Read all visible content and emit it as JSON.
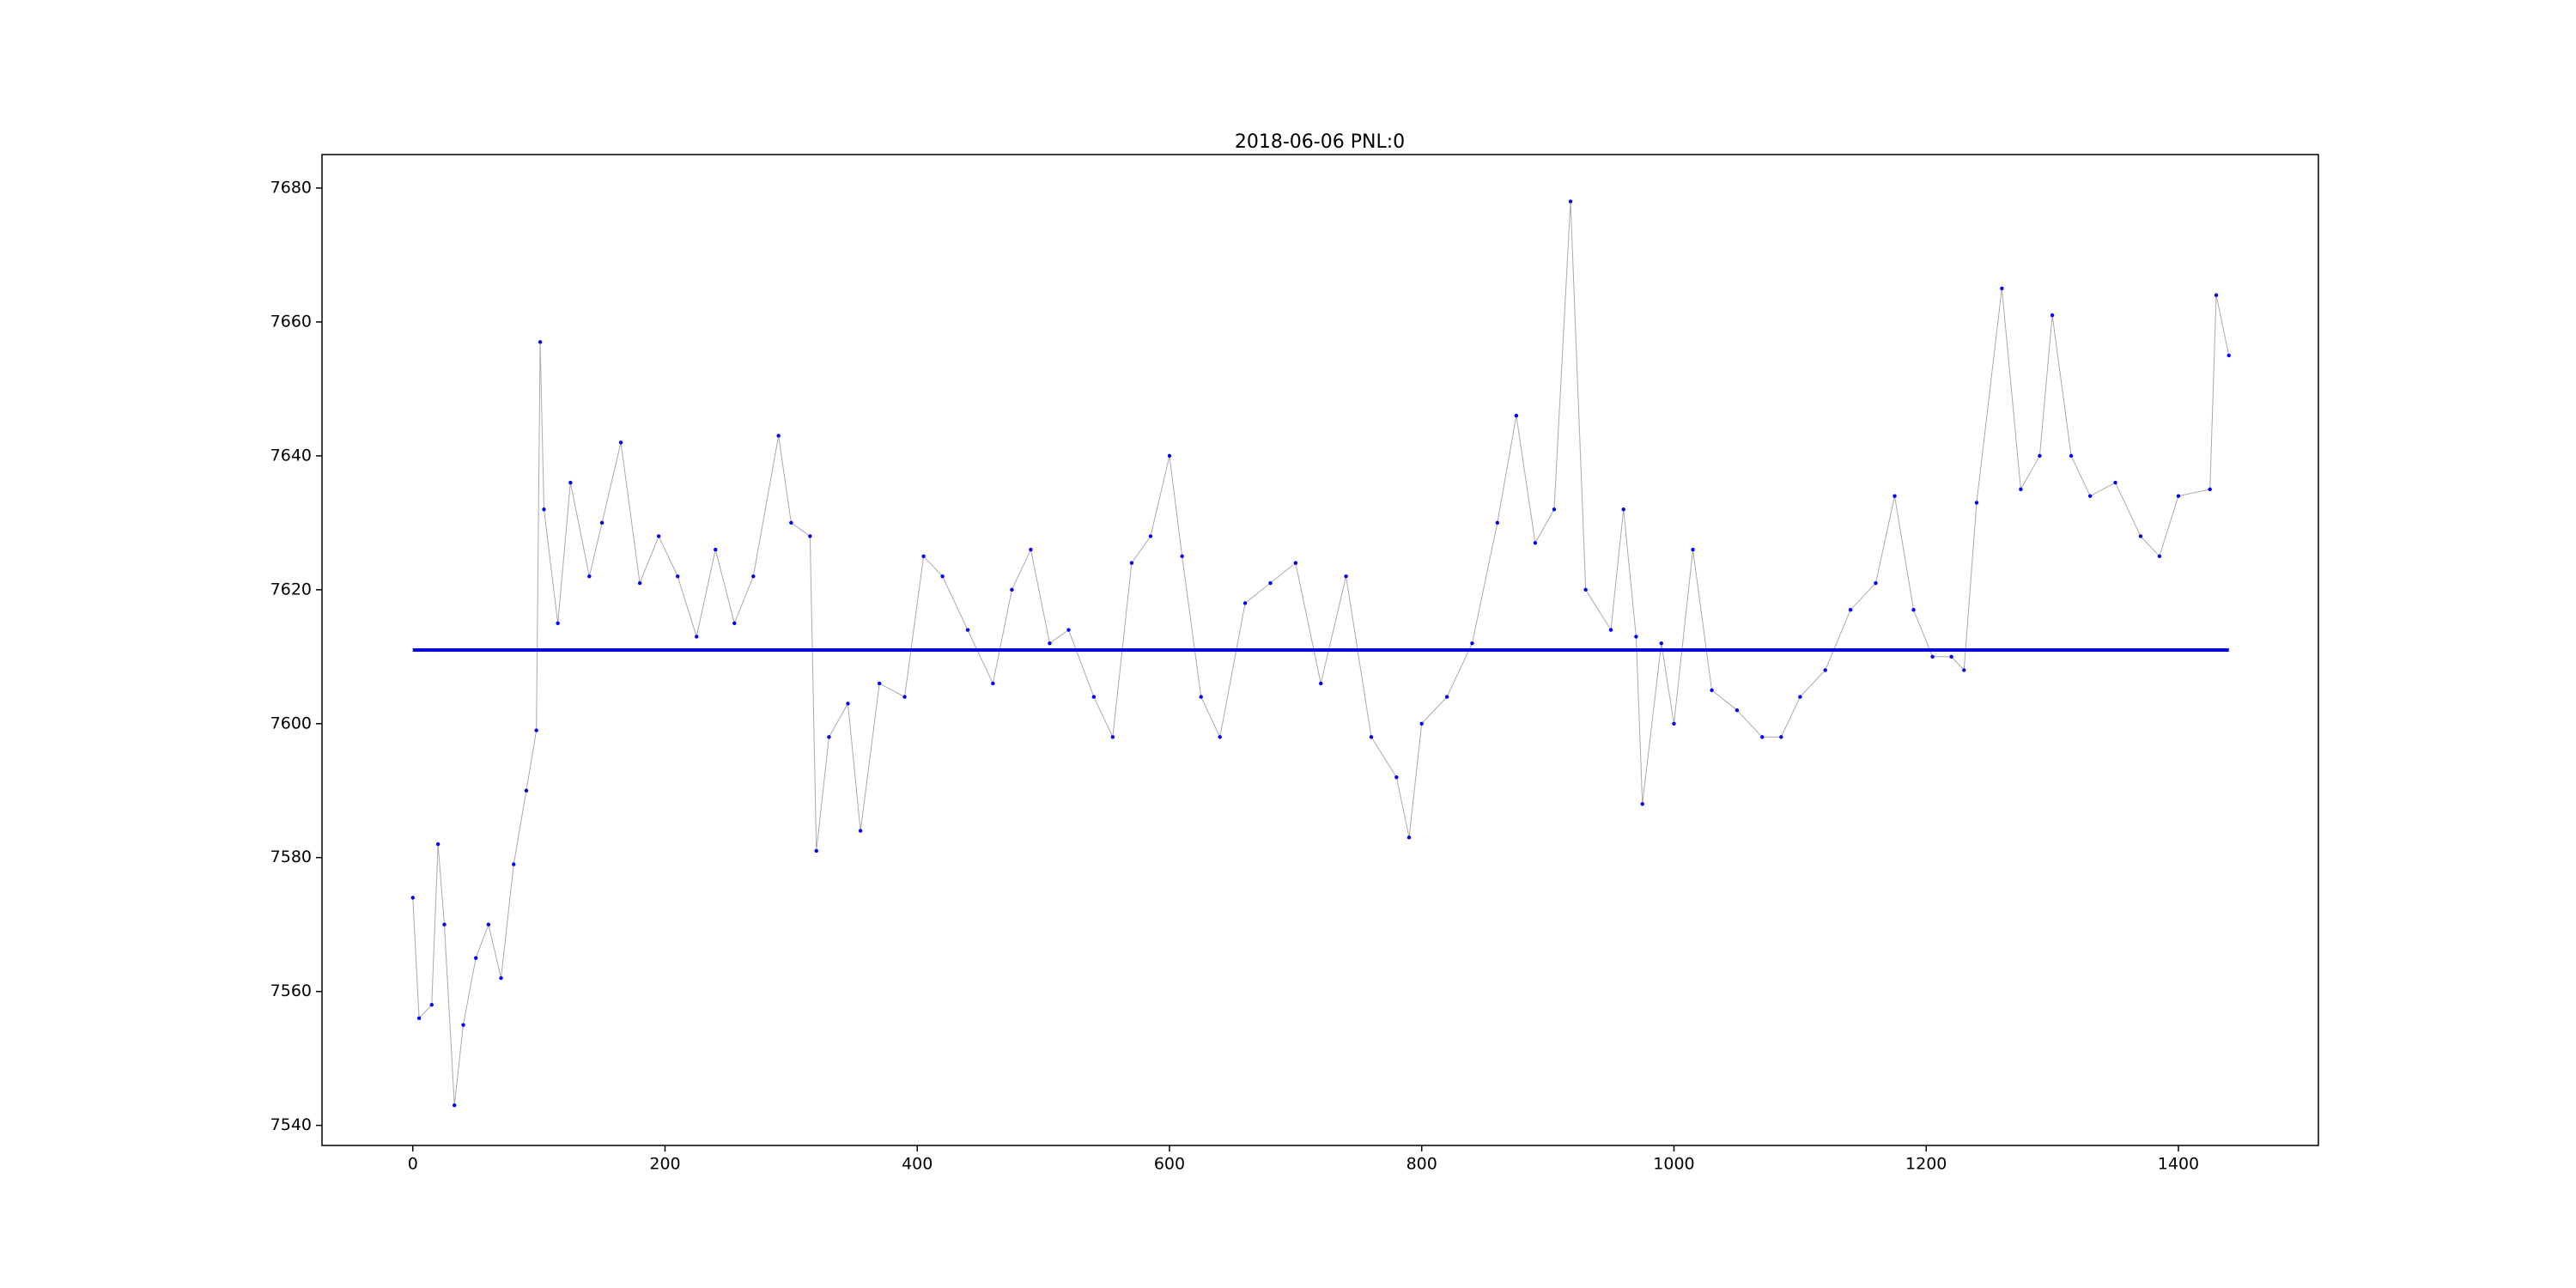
{
  "chart_data": {
    "type": "line",
    "title": "2018-06-06 PNL:0",
    "xlim": [
      -72,
      1511
    ],
    "ylim": [
      7537,
      7685
    ],
    "xticks": [
      0,
      200,
      400,
      600,
      800,
      1000,
      1200,
      1400
    ],
    "yticks": [
      7540,
      7560,
      7580,
      7600,
      7620,
      7640,
      7660,
      7680
    ],
    "series": [
      {
        "color": "#aaaaaa",
        "marker_color": "blue",
        "x": [
          0,
          5,
          15,
          20,
          25,
          33,
          40,
          50,
          60,
          70,
          80,
          90,
          98,
          101,
          104,
          115,
          125,
          140,
          150,
          165,
          180,
          195,
          210,
          225,
          240,
          255,
          270,
          290,
          300,
          315,
          320,
          330,
          345,
          355,
          370,
          390,
          405,
          420,
          440,
          460,
          475,
          490,
          505,
          520,
          540,
          555,
          570,
          585,
          600,
          610,
          625,
          640,
          660,
          680,
          700,
          720,
          740,
          760,
          780,
          790,
          800,
          820,
          840,
          860,
          875,
          890,
          905,
          918,
          930,
          950,
          960,
          970,
          975,
          990,
          1000,
          1015,
          1030,
          1050,
          1070,
          1085,
          1100,
          1120,
          1140,
          1160,
          1175,
          1190,
          1205,
          1220,
          1230,
          1240,
          1260,
          1275,
          1290,
          1300,
          1315,
          1330,
          1350,
          1370,
          1385,
          1400,
          1425,
          1430,
          1440
        ],
        "values": [
          7574,
          7556,
          7558,
          7582,
          7570,
          7543,
          7555,
          7565,
          7570,
          7562,
          7579,
          7590,
          7599,
          7657,
          7632,
          7615,
          7636,
          7622,
          7630,
          7642,
          7621,
          7628,
          7622,
          7613,
          7626,
          7615,
          7622,
          7643,
          7630,
          7628,
          7581,
          7598,
          7603,
          7584,
          7606,
          7604,
          7625,
          7622,
          7614,
          7606,
          7620,
          7626,
          7612,
          7614,
          7604,
          7598,
          7624,
          7628,
          7640,
          7625,
          7604,
          7598,
          7618,
          7621,
          7624,
          7606,
          7622,
          7598,
          7592,
          7583,
          7600,
          7604,
          7612,
          7630,
          7646,
          7627,
          7632,
          7678,
          7620,
          7614,
          7632,
          7613,
          7588,
          7612,
          7600,
          7626,
          7605,
          7602,
          7598,
          7598,
          7604,
          7608,
          7617,
          7621,
          7634,
          7617,
          7610,
          7610,
          7608,
          7633,
          7665,
          7635,
          7640,
          7661,
          7640,
          7634,
          7636,
          7628,
          7625,
          7634,
          7635,
          7664,
          7655
        ]
      },
      {
        "color": "blue",
        "x": [
          0,
          1440
        ],
        "values": [
          7611,
          7611
        ]
      }
    ]
  }
}
